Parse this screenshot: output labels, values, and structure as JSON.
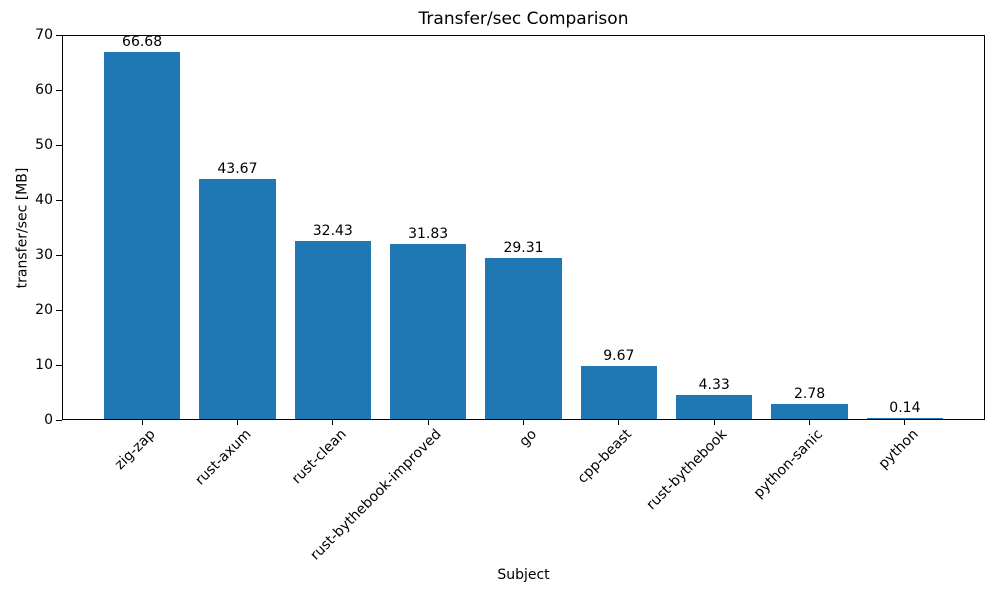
{
  "chart_data": {
    "type": "bar",
    "title": "Transfer/sec Comparison",
    "xlabel": "Subject",
    "ylabel": "transfer/sec [MB]",
    "categories": [
      "zig-zap",
      "rust-axum",
      "rust-clean",
      "rust-bythebook-improved",
      "go",
      "cpp-beast",
      "rust-bythebook",
      "python-sanic",
      "python"
    ],
    "values": [
      66.68,
      43.67,
      32.43,
      31.83,
      29.31,
      9.67,
      4.33,
      2.78,
      0.14
    ],
    "value_labels": [
      "66.68",
      "43.67",
      "32.43",
      "31.83",
      "29.31",
      "9.67",
      "4.33",
      "2.78",
      "0.14"
    ],
    "ylim": [
      0,
      70
    ],
    "yticks": [
      0,
      10,
      20,
      30,
      40,
      50,
      60,
      70
    ],
    "bar_color": "#1f77b4",
    "grid": "off",
    "legend": "none",
    "xtick_rotation_deg": 45
  }
}
